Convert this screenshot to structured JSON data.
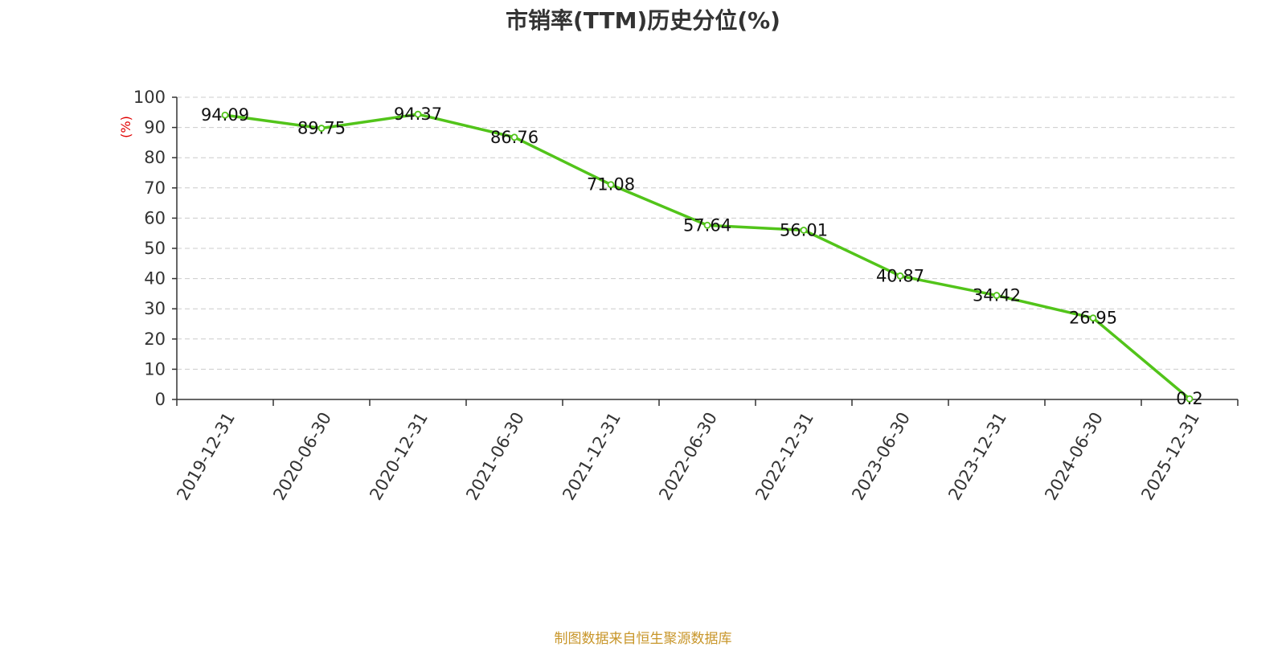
{
  "chart_data": {
    "type": "line",
    "title": "市销率(TTM)历史分位(%)",
    "ylabel": "(%)",
    "xlabel": "",
    "categories": [
      "2019-12-31",
      "2020-06-30",
      "2020-12-31",
      "2021-06-30",
      "2021-12-31",
      "2022-06-30",
      "2022-12-31",
      "2023-06-30",
      "2023-12-31",
      "2024-06-30",
      "2025-12-31"
    ],
    "series": [
      {
        "values": [
          94.09,
          89.75,
          94.37,
          86.76,
          71.08,
          57.64,
          56.01,
          40.87,
          34.42,
          26.95,
          0.2
        ],
        "labels": [
          "94.09",
          "89.75",
          "94.37",
          "86.76",
          "71.08",
          "57.64",
          "56.01",
          "40.87",
          "34.42",
          "26.95",
          "0.2"
        ]
      }
    ],
    "ylim": [
      0,
      100
    ],
    "yticks": [
      "0",
      "10",
      "20",
      "30",
      "40",
      "50",
      "60",
      "70",
      "80",
      "90",
      "100"
    ],
    "grid": true,
    "legend": "none",
    "colors": {
      "line": "#52c41a",
      "ylabel": "#e00000",
      "grid": "#cccccc",
      "axis": "#333333",
      "title": "#333333",
      "source": "#c8962a"
    }
  },
  "source_note": "制图数据来自恒生聚源数据库"
}
